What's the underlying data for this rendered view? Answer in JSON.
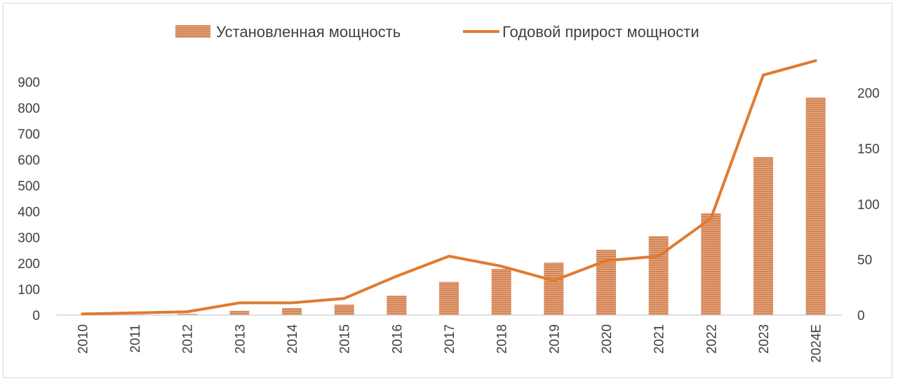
{
  "chart_data": {
    "type": "bar",
    "categories": [
      "2010",
      "2011",
      "2012",
      "2013",
      "2014",
      "2015",
      "2016",
      "2017",
      "2018",
      "2019",
      "2020",
      "2021",
      "2022",
      "2023",
      "2024E"
    ],
    "series": [
      {
        "name": "Установленная мощность",
        "type": "bar",
        "axis": "left",
        "color": "#d9875a",
        "values": [
          1,
          2,
          5,
          16,
          27,
          40,
          75,
          128,
          178,
          202,
          252,
          305,
          393,
          610,
          840
        ]
      },
      {
        "name": "Годовой прирост мощности",
        "type": "line",
        "axis": "right",
        "color": "#e07a30",
        "values": [
          1,
          2,
          3,
          11,
          11,
          15,
          35,
          53,
          44,
          31,
          49,
          53,
          87,
          216,
          229
        ]
      }
    ],
    "y_left": {
      "min": 0,
      "max": 900,
      "ticks": [
        "0",
        "100",
        "200",
        "300",
        "400",
        "500",
        "600",
        "700",
        "800",
        "900"
      ]
    },
    "y_right": {
      "min": 0,
      "max": 230,
      "ticks": [
        "0",
        "50",
        "100",
        "150",
        "200"
      ]
    },
    "legend_position": "top",
    "grid": false
  }
}
